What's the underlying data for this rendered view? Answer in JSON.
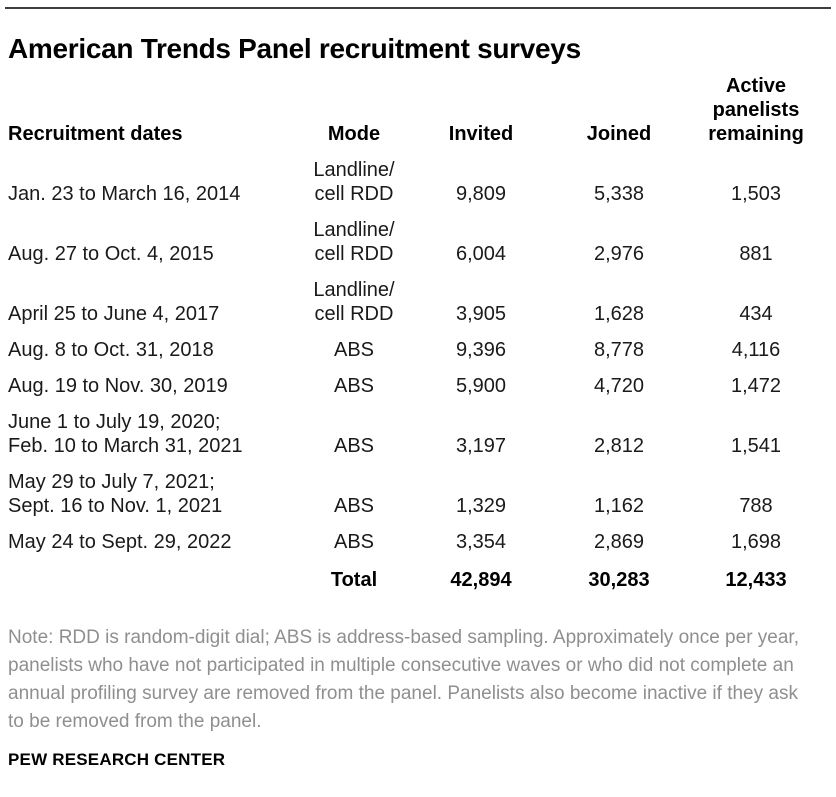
{
  "title": "American Trends Panel recruitment surveys",
  "colors": {
    "rule": "#3e3e3e",
    "body_text": "#1a1a1a",
    "note_text": "#8f8f8f"
  },
  "chart_data": {
    "type": "table",
    "title": "American Trends Panel recruitment surveys",
    "columns": [
      "Recruitment dates",
      "Mode",
      "Invited",
      "Joined",
      "Active panelists remaining"
    ],
    "rows": [
      {
        "dates": "Jan. 23 to March 16, 2014",
        "mode": "Landline/\ncell RDD",
        "invited": "9,809",
        "joined": "5,338",
        "active": "1,503"
      },
      {
        "dates": "Aug. 27 to Oct. 4, 2015",
        "mode": "Landline/\ncell RDD",
        "invited": "6,004",
        "joined": "2,976",
        "active": "881"
      },
      {
        "dates": "April 25 to June 4, 2017",
        "mode": "Landline/\ncell RDD",
        "invited": "3,905",
        "joined": "1,628",
        "active": "434"
      },
      {
        "dates": "Aug. 8 to Oct. 31, 2018",
        "mode": "ABS",
        "invited": "9,396",
        "joined": "8,778",
        "active": "4,116"
      },
      {
        "dates": "Aug. 19 to Nov. 30, 2019",
        "mode": "ABS",
        "invited": "5,900",
        "joined": "4,720",
        "active": "1,472"
      },
      {
        "dates": "June 1 to July 19, 2020;\nFeb. 10 to March 31, 2021",
        "mode": "ABS",
        "invited": "3,197",
        "joined": "2,812",
        "active": "1,541"
      },
      {
        "dates": "May 29 to July 7, 2021;\nSept. 16 to Nov. 1, 2021",
        "mode": "ABS",
        "invited": "1,329",
        "joined": "1,162",
        "active": "788"
      },
      {
        "dates": "May 24 to Sept. 29, 2022",
        "mode": "ABS",
        "invited": "3,354",
        "joined": "2,869",
        "active": "1,698"
      }
    ],
    "total_row": {
      "label": "Total",
      "invited": "42,894",
      "joined": "30,283",
      "active": "12,433"
    }
  },
  "note": "Note: RDD is random-digit dial; ABS is address-based sampling. Approximately once per year, panelists who have not participated in multiple consecutive waves or who did not complete an annual profiling survey are removed from the panel. Panelists also become inactive if they ask to be removed from the panel.",
  "source": "PEW RESEARCH CENTER"
}
